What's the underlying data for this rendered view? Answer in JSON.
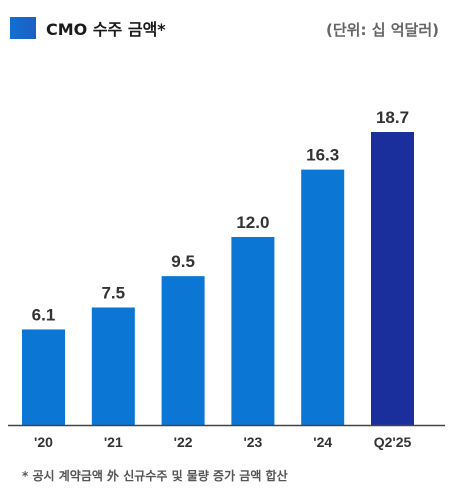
{
  "legend": {
    "label": "CMO 수주 금액*"
  },
  "unit_label": "(단위: 십 억달러)",
  "footnote": "* 공시 계약금액 外 신규수주 및 물량 증가 금액 합산",
  "colors": {
    "bar": "#0b76d4",
    "highlight": "#1b2f9c",
    "axis": "#444444",
    "value_text": "#333333"
  },
  "chart_data": {
    "type": "bar",
    "categories": [
      "'20",
      "'21",
      "'22",
      "'23",
      "'24",
      "Q2'25"
    ],
    "series": [
      {
        "values": [
          6.1,
          7.5,
          9.5,
          12.0,
          16.3,
          18.7
        ]
      }
    ],
    "value_labels": [
      "6.1",
      "7.5",
      "9.5",
      "12.0",
      "16.3",
      "18.7"
    ],
    "highlight_index": 5,
    "ylim": [
      0,
      18.7
    ],
    "grid": false,
    "legend_position": "top-left"
  }
}
